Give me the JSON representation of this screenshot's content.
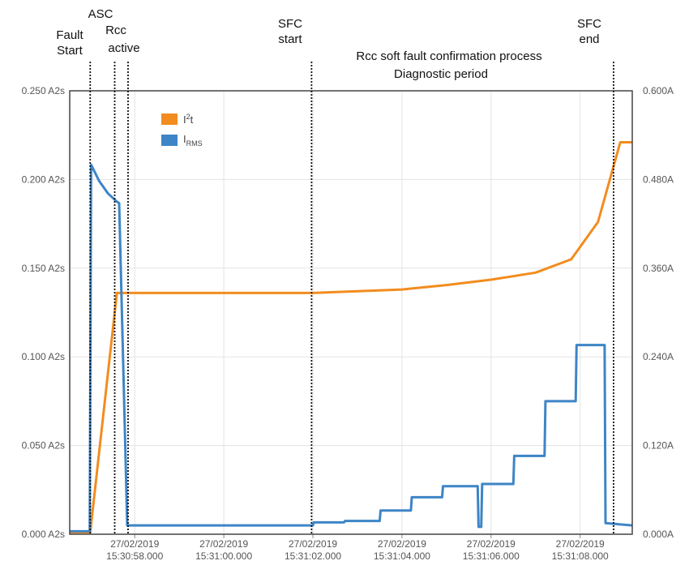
{
  "chart_data": {
    "type": "line",
    "title": "",
    "xlabel": "",
    "ylabel": "",
    "grid": true,
    "legend_position": "top-left",
    "x_ticks": [
      {
        "t": 58,
        "date": "27/02/2019",
        "time": "15:30:58.000"
      },
      {
        "t": 60,
        "date": "27/02/2019",
        "time": "15:31:00.000"
      },
      {
        "t": 62,
        "date": "27/02/2019",
        "time": "15:31:02.000"
      },
      {
        "t": 64,
        "date": "27/02/2019",
        "time": "15:31:04.000"
      },
      {
        "t": 66,
        "date": "27/02/2019",
        "time": "15:31:06.000"
      },
      {
        "t": 68,
        "date": "27/02/2019",
        "time": "15:31:08.000"
      }
    ],
    "xlim": [
      56.54,
      69.17
    ],
    "left_axis": {
      "ylim": [
        0,
        0.25
      ],
      "ticks": [
        "0.000 A2s",
        "0.050 A2s",
        "0.100 A2s",
        "0.150 A2s",
        "0.200 A2s",
        "0.250 A2s"
      ]
    },
    "right_axis": {
      "ylim": [
        0,
        0.6
      ],
      "ticks": [
        "0.000A",
        "0.120A",
        "0.240A",
        "0.360A",
        "0.480A",
        "0.600A"
      ]
    },
    "series": [
      {
        "name": "I2t",
        "legend_main": "I",
        "legend_sup": "2",
        "legend_suffix": "t",
        "color": "#f28c1f",
        "axis": "left",
        "points": [
          [
            56.54,
            0.001
          ],
          [
            56.99,
            0.001
          ],
          [
            57.0,
            0.001
          ],
          [
            57.6,
            0.136
          ],
          [
            62.0,
            0.136
          ],
          [
            63.0,
            0.137
          ],
          [
            64.0,
            0.138
          ],
          [
            65.0,
            0.1405
          ],
          [
            66.0,
            0.1435
          ],
          [
            67.0,
            0.1475
          ],
          [
            67.8,
            0.155
          ],
          [
            68.4,
            0.176
          ],
          [
            68.9,
            0.221
          ],
          [
            69.17,
            0.221
          ]
        ]
      },
      {
        "name": "IRMS",
        "legend_main": "I",
        "legend_sub": "RMS",
        "color": "#3d85c6",
        "axis": "right",
        "points": [
          [
            56.54,
            0.004
          ],
          [
            56.99,
            0.004
          ],
          [
            57.02,
            0.5
          ],
          [
            57.2,
            0.478
          ],
          [
            57.4,
            0.461
          ],
          [
            57.6,
            0.45
          ],
          [
            57.65,
            0.448
          ],
          [
            57.8,
            0.09
          ],
          [
            57.83,
            0.012
          ],
          [
            62.0,
            0.012
          ],
          [
            62.02,
            0.016
          ],
          [
            62.7,
            0.016
          ],
          [
            62.72,
            0.018
          ],
          [
            63.5,
            0.018
          ],
          [
            63.52,
            0.032
          ],
          [
            64.2,
            0.032
          ],
          [
            64.22,
            0.05
          ],
          [
            64.9,
            0.05
          ],
          [
            64.92,
            0.065
          ],
          [
            65.7,
            0.065
          ],
          [
            65.72,
            0.01
          ],
          [
            65.78,
            0.01
          ],
          [
            65.8,
            0.068
          ],
          [
            66.5,
            0.068
          ],
          [
            66.52,
            0.106
          ],
          [
            67.2,
            0.106
          ],
          [
            67.22,
            0.18
          ],
          [
            67.9,
            0.18
          ],
          [
            67.92,
            0.256
          ],
          [
            68.55,
            0.256
          ],
          [
            68.57,
            0.015
          ],
          [
            69.17,
            0.012
          ]
        ]
      }
    ],
    "markers": [
      {
        "t": 57.0,
        "lines": [
          "Fault",
          "Start"
        ]
      },
      {
        "t": 57.55,
        "lines": [
          "Rcc"
        ]
      },
      {
        "t": 57.85,
        "lines": [
          "active"
        ]
      },
      {
        "t": 61.97,
        "lines": [
          "SFC",
          "start"
        ]
      },
      {
        "t": 68.75,
        "lines": [
          "SFC",
          "end"
        ]
      }
    ],
    "annotations": [
      "ASC",
      "Rcc soft fault confirmation process",
      "Diagnostic period"
    ]
  }
}
